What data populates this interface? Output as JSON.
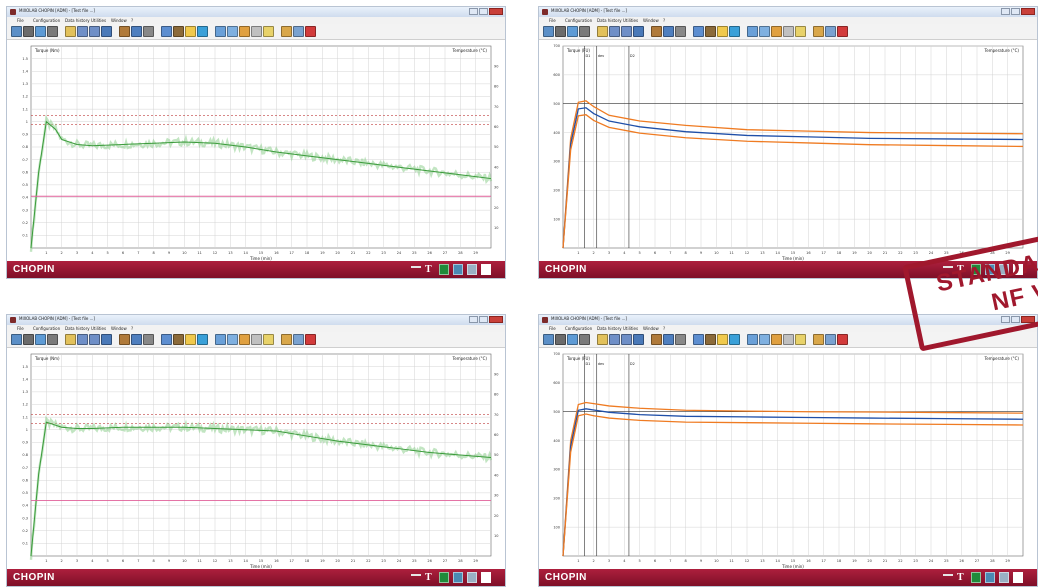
{
  "windows": [
    {
      "title": "MIXOLAB CHOPIN [ADM] - [Test file ...]",
      "menu": [
        "File",
        "Configuration",
        "Data history",
        "Utilities",
        "Window",
        "?"
      ],
      "ylabel": "Torque (Nm)",
      "y2label": "Temperature (°C)",
      "xlabel": "Time (min)",
      "brand": "CHOPIN",
      "chart_data": {
        "type": "line",
        "x_range": [
          0,
          30
        ],
        "y_range": [
          0,
          1.6
        ],
        "y_ticks": [
          0.1,
          0.2,
          0.3,
          0.4,
          0.5,
          0.6,
          0.7,
          0.8,
          0.9,
          1.0,
          1.1,
          1.2,
          1.3,
          1.4,
          1.5
        ],
        "y2_ticks": [
          10,
          20,
          30,
          40,
          50,
          60,
          70,
          80,
          90
        ],
        "x_ticks": [
          1,
          2,
          3,
          4,
          5,
          6,
          7,
          8,
          9,
          10,
          11,
          12,
          13,
          14,
          15,
          16,
          17,
          18,
          19,
          20,
          21,
          22,
          23,
          24,
          25,
          26,
          27,
          28,
          29
        ],
        "dashed_ref_lines": [
          1.05,
          0.98
        ],
        "series": [
          {
            "role": "measured",
            "color": "#3a9a3a",
            "x": [
              0,
              0.5,
              1,
              1.6,
              2,
              3,
              4,
              6,
              8,
              10,
              12,
              14,
              16,
              18,
              20,
              22,
              24,
              26,
              28,
              30
            ],
            "y": [
              0,
              0.6,
              1.0,
              0.94,
              0.86,
              0.82,
              0.81,
              0.82,
              0.83,
              0.84,
              0.83,
              0.8,
              0.76,
              0.73,
              0.7,
              0.67,
              0.64,
              0.61,
              0.58,
              0.55
            ]
          },
          {
            "role": "temperature",
            "color": "#e0609a",
            "x": [
              0,
              30
            ],
            "y": [
              0.41,
              0.41
            ]
          }
        ]
      }
    },
    {
      "title": "MIXOLAB CHOPIN [ADM] - [Test file ...]",
      "menu": [
        "File",
        "Configuration",
        "Data history",
        "Utilities",
        "Window",
        "?"
      ],
      "ylabel": "Torque (FU)",
      "y2label": "Temperature (°C)",
      "xlabel": "Time (min)",
      "brand": "CHOPIN",
      "markers": [
        "D1",
        "dev",
        "D2"
      ],
      "chart_data": {
        "type": "line",
        "x_range": [
          0,
          30
        ],
        "y_range": [
          0,
          700
        ],
        "y_ticks": [
          100,
          200,
          300,
          400,
          500,
          600,
          700
        ],
        "x_ticks": [
          1,
          2,
          3,
          4,
          5,
          6,
          7,
          8,
          9,
          10,
          11,
          12,
          13,
          14,
          15,
          16,
          17,
          18,
          19,
          20,
          21,
          22,
          23,
          24,
          25,
          26,
          27,
          28,
          29
        ],
        "ref_line": 500,
        "series": [
          {
            "role": "upper-tolerance",
            "color": "#ef7b22",
            "x": [
              0,
              0.5,
              1,
              1.5,
              2,
              3,
              5,
              8,
              12,
              16,
              20,
              25,
              30
            ],
            "y": [
              0,
              380,
              505,
              510,
              490,
              460,
              440,
              425,
              410,
              405,
              400,
              398,
              396
            ]
          },
          {
            "role": "average",
            "color": "#1f4fa8",
            "x": [
              0,
              0.5,
              1,
              1.5,
              2,
              3,
              5,
              8,
              12,
              16,
              20,
              25,
              30
            ],
            "y": [
              0,
              360,
              482,
              486,
              466,
              440,
              420,
              403,
              390,
              385,
              380,
              378,
              376
            ]
          },
          {
            "role": "lower-tolerance",
            "color": "#ef7b22",
            "x": [
              0,
              0.5,
              1,
              1.5,
              2,
              3,
              5,
              8,
              12,
              16,
              20,
              25,
              30
            ],
            "y": [
              0,
              340,
              458,
              462,
              442,
              418,
              398,
              382,
              370,
              364,
              358,
              355,
              352
            ]
          }
        ]
      }
    },
    {
      "title": "MIXOLAB CHOPIN [ADM] - [Test file ...]",
      "menu": [
        "File",
        "Configuration",
        "Data history",
        "Utilities",
        "Window",
        "?"
      ],
      "ylabel": "Torque (Nm)",
      "y2label": "Temperature (°C)",
      "xlabel": "Time (min)",
      "brand": "CHOPIN",
      "chart_data": {
        "type": "line",
        "x_range": [
          0,
          30
        ],
        "y_range": [
          0,
          1.6
        ],
        "y_ticks": [
          0.1,
          0.2,
          0.3,
          0.4,
          0.5,
          0.6,
          0.7,
          0.8,
          0.9,
          1.0,
          1.1,
          1.2,
          1.3,
          1.4,
          1.5
        ],
        "y2_ticks": [
          10,
          20,
          30,
          40,
          50,
          60,
          70,
          80,
          90
        ],
        "x_ticks": [
          1,
          2,
          3,
          4,
          5,
          6,
          7,
          8,
          9,
          10,
          11,
          12,
          13,
          14,
          15,
          16,
          17,
          18,
          19,
          20,
          21,
          22,
          23,
          24,
          25,
          26,
          27,
          28,
          29
        ],
        "dashed_ref_lines": [
          1.12,
          1.05
        ],
        "series": [
          {
            "role": "measured",
            "color": "#3a9a3a",
            "x": [
              0,
              0.5,
              1,
              1.5,
              2,
              3,
              4,
              6,
              8,
              10,
              12,
              14,
              16,
              18,
              20,
              22,
              24,
              26,
              28,
              30
            ],
            "y": [
              0,
              0.65,
              1.06,
              1.04,
              1.02,
              1.01,
              1.01,
              1.02,
              1.02,
              1.02,
              1.01,
              1.0,
              0.99,
              0.95,
              0.91,
              0.88,
              0.85,
              0.82,
              0.8,
              0.78
            ]
          },
          {
            "role": "temperature",
            "color": "#e0609a",
            "x": [
              0,
              30
            ],
            "y": [
              0.44,
              0.44
            ]
          }
        ]
      }
    },
    {
      "title": "MIXOLAB CHOPIN [ADM] - [Test file ...]",
      "menu": [
        "File",
        "Configuration",
        "Data history",
        "Utilities",
        "Window",
        "?"
      ],
      "ylabel": "Torque (FU)",
      "y2label": "Temperature (°C)",
      "xlabel": "Time (min)",
      "brand": "CHOPIN",
      "markers": [
        "D1",
        "dev",
        "D2"
      ],
      "chart_data": {
        "type": "line",
        "x_range": [
          0,
          30
        ],
        "y_range": [
          0,
          700
        ],
        "y_ticks": [
          100,
          200,
          300,
          400,
          500,
          600,
          700
        ],
        "x_ticks": [
          1,
          2,
          3,
          4,
          5,
          6,
          7,
          8,
          9,
          10,
          11,
          12,
          13,
          14,
          15,
          16,
          17,
          18,
          19,
          20,
          21,
          22,
          23,
          24,
          25,
          26,
          27,
          28,
          29
        ],
        "ref_line": 500,
        "series": [
          {
            "role": "upper-tolerance",
            "color": "#ef7b22",
            "x": [
              0,
              0.5,
              1,
              1.5,
              2,
              3,
              5,
              8,
              12,
              16,
              20,
              25,
              30
            ],
            "y": [
              0,
              400,
              525,
              532,
              528,
              520,
              512,
              505,
              502,
              500,
              499,
              497,
              495
            ]
          },
          {
            "role": "average",
            "color": "#1f4fa8",
            "x": [
              0,
              0.5,
              1,
              1.5,
              2,
              3,
              5,
              8,
              12,
              16,
              20,
              25,
              30
            ],
            "y": [
              0,
              380,
              505,
              510,
              506,
              498,
              490,
              484,
              482,
              480,
              478,
              476,
              474
            ]
          },
          {
            "role": "lower-tolerance",
            "color": "#ef7b22",
            "x": [
              0,
              0.5,
              1,
              1.5,
              2,
              3,
              5,
              8,
              12,
              16,
              20,
              25,
              30
            ],
            "y": [
              0,
              360,
              486,
              492,
              486,
              478,
              470,
              464,
              462,
              460,
              458,
              456,
              454
            ]
          }
        ]
      }
    }
  ],
  "toolbar_icons": [
    "curve-icon",
    "s-icon",
    "gauge-icon",
    "clock-icon",
    "folder-icon",
    "doc-icon",
    "save-icon",
    "print-icon",
    "book-icon",
    "text-icon",
    "delete-icon",
    "tare-icon",
    "sort-icon",
    "bulb-icon",
    "options-icon",
    "export-icon",
    "compare-icon",
    "zoom-icon",
    "calc-icon",
    "db-icon",
    "tools-icon",
    "report-icon",
    "close-red-icon"
  ],
  "toolbar_colors": [
    "#5b8fc7",
    "#6b6b6b",
    "#5e9bd5",
    "#7a7a7a",
    "#e2c15b",
    "#6f8fc7",
    "#6f8fc7",
    "#4a79b8",
    "#b07a3a",
    "#4f7fbf",
    "#888888",
    "#5d8ed0",
    "#8b6a3a",
    "#f0c94c",
    "#3aa0d8",
    "#6aa0d8",
    "#7fb0e0",
    "#e0a040",
    "#c0c0c0",
    "#e8d26a",
    "#d9a74a",
    "#7aa2d0",
    "#d23b3b"
  ],
  "footer_icons": [
    "key-icon",
    "t-icon",
    "flag-icon",
    "doc-icon",
    "grid-icon",
    "box-icon"
  ],
  "stamp": {
    "line1": "STANDAR",
    "line2": "NF V"
  }
}
